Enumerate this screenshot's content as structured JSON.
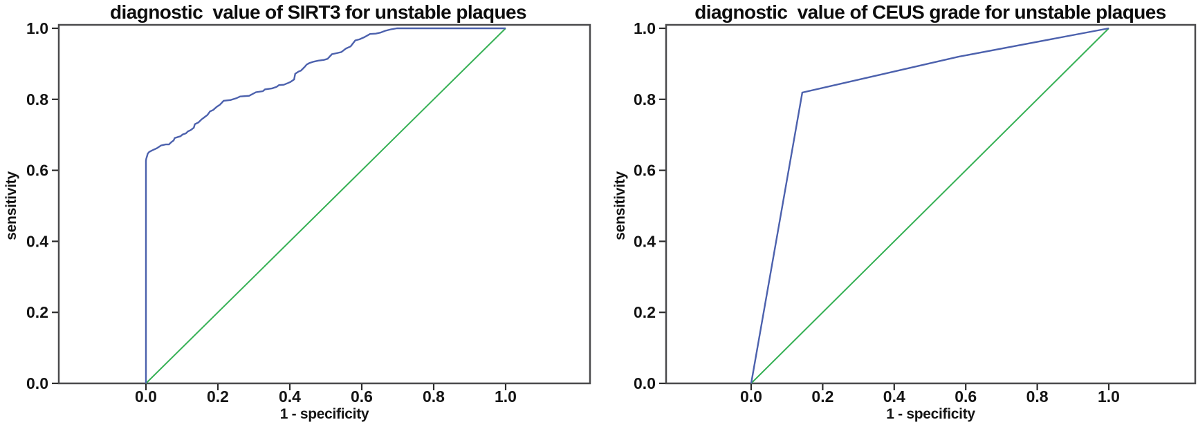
{
  "page": {
    "background": "#ffffff"
  },
  "style": {
    "curve_color": "#4c61ad",
    "reference_color": "#35b054",
    "box_border_color": "#4a4a4c",
    "tick_color": "#2b2b2b",
    "tick_label_color": "#141414"
  },
  "chart_data": [
    {
      "type": "line",
      "title": "diagnostic  value of SIRT3 for unstable plaques",
      "xlabel": "1 - specificity",
      "ylabel": "sensitivity",
      "xlim": [
        -0.24,
        1.235
      ],
      "ylim": [
        0.0,
        1.01
      ],
      "grid": false,
      "legend": null,
      "x_ticks": [
        0.0,
        0.2,
        0.4,
        0.6,
        0.8,
        1.0
      ],
      "x_tick_labels": [
        "0.0",
        "0.2",
        "0.4",
        "0.6",
        "0.8",
        "1.0"
      ],
      "y_ticks": [
        0.0,
        0.2,
        0.4,
        0.6,
        0.8,
        1.0
      ],
      "y_tick_labels": [
        "0.0",
        "0.2",
        "0.4",
        "0.6",
        "0.8",
        "1.0"
      ],
      "series": [
        {
          "name": "ROC curve (SIRT3)",
          "color": "#4c61ad",
          "points": [
            [
              0.0,
              0.0
            ],
            [
              0.0,
              0.627
            ],
            [
              0.001,
              0.633
            ],
            [
              0.003,
              0.64
            ],
            [
              0.005,
              0.647
            ],
            [
              0.009,
              0.652
            ],
            [
              0.015,
              0.655
            ],
            [
              0.021,
              0.658
            ],
            [
              0.03,
              0.662
            ],
            [
              0.042,
              0.67
            ],
            [
              0.055,
              0.673
            ],
            [
              0.064,
              0.673
            ],
            [
              0.07,
              0.679
            ],
            [
              0.077,
              0.684
            ],
            [
              0.08,
              0.691
            ],
            [
              0.089,
              0.694
            ],
            [
              0.096,
              0.696
            ],
            [
              0.102,
              0.701
            ],
            [
              0.111,
              0.704
            ],
            [
              0.117,
              0.71
            ],
            [
              0.124,
              0.713
            ],
            [
              0.133,
              0.72
            ],
            [
              0.136,
              0.73
            ],
            [
              0.146,
              0.735
            ],
            [
              0.154,
              0.743
            ],
            [
              0.162,
              0.749
            ],
            [
              0.171,
              0.756
            ],
            [
              0.178,
              0.766
            ],
            [
              0.187,
              0.77
            ],
            [
              0.197,
              0.779
            ],
            [
              0.206,
              0.785
            ],
            [
              0.216,
              0.796
            ],
            [
              0.235,
              0.798
            ],
            [
              0.251,
              0.803
            ],
            [
              0.262,
              0.808
            ],
            [
              0.287,
              0.81
            ],
            [
              0.306,
              0.82
            ],
            [
              0.325,
              0.823
            ],
            [
              0.331,
              0.828
            ],
            [
              0.351,
              0.831
            ],
            [
              0.363,
              0.835
            ],
            [
              0.37,
              0.84
            ],
            [
              0.383,
              0.841
            ],
            [
              0.395,
              0.846
            ],
            [
              0.402,
              0.849
            ],
            [
              0.412,
              0.856
            ],
            [
              0.415,
              0.872
            ],
            [
              0.424,
              0.878
            ],
            [
              0.431,
              0.881
            ],
            [
              0.441,
              0.891
            ],
            [
              0.447,
              0.898
            ],
            [
              0.454,
              0.902
            ],
            [
              0.466,
              0.906
            ],
            [
              0.479,
              0.909
            ],
            [
              0.495,
              0.911
            ],
            [
              0.505,
              0.914
            ],
            [
              0.517,
              0.927
            ],
            [
              0.53,
              0.93
            ],
            [
              0.543,
              0.933
            ],
            [
              0.556,
              0.943
            ],
            [
              0.569,
              0.949
            ],
            [
              0.582,
              0.966
            ],
            [
              0.594,
              0.969
            ],
            [
              0.607,
              0.975
            ],
            [
              0.623,
              0.984
            ],
            [
              0.639,
              0.985
            ],
            [
              0.652,
              0.988
            ],
            [
              0.665,
              0.993
            ],
            [
              0.681,
              0.997
            ],
            [
              0.698,
              1.0
            ],
            [
              1.0,
              1.0
            ]
          ]
        },
        {
          "name": "reference line",
          "color": "#35b054",
          "points": [
            [
              0.0,
              0.0
            ],
            [
              1.0,
              1.0
            ]
          ]
        }
      ]
    },
    {
      "type": "line",
      "title": "diagnostic  value of CEUS grade for unstable plaques",
      "xlabel": "1 - specificity",
      "ylabel": "sensitivity",
      "xlim": [
        -0.24,
        1.235
      ],
      "ylim": [
        0.0,
        1.01
      ],
      "grid": false,
      "legend": null,
      "x_ticks": [
        0.0,
        0.2,
        0.4,
        0.6,
        0.8,
        1.0
      ],
      "x_tick_labels": [
        "0.0",
        "0.2",
        "0.4",
        "0.6",
        "0.8",
        "1.0"
      ],
      "y_ticks": [
        0.0,
        0.2,
        0.4,
        0.6,
        0.8,
        1.0
      ],
      "y_tick_labels": [
        "0.0",
        "0.2",
        "0.4",
        "0.6",
        "0.8",
        "1.0"
      ],
      "series": [
        {
          "name": "ROC curve (CEUS grade)",
          "color": "#4c61ad",
          "points": [
            [
              0.0,
              0.0
            ],
            [
              0.143,
              0.819
            ],
            [
              0.58,
              0.92
            ],
            [
              1.0,
              1.0
            ]
          ]
        },
        {
          "name": "reference line",
          "color": "#35b054",
          "points": [
            [
              0.0,
              0.0
            ],
            [
              1.0,
              1.0
            ]
          ]
        }
      ]
    }
  ]
}
